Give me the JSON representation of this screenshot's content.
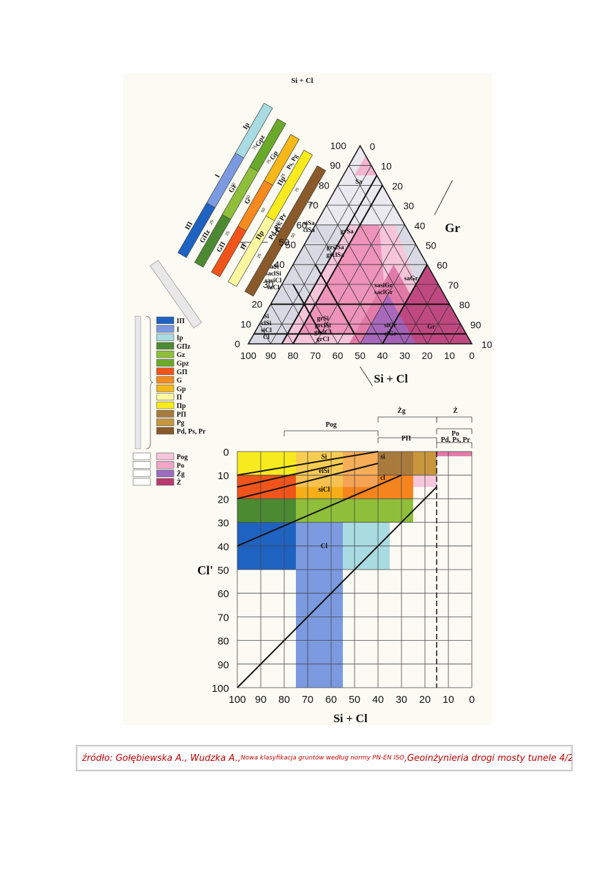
{
  "triangle": {
    "apex_label": "Si + Cl",
    "left_axis_label": "Sa",
    "right_axis_label": "Gr",
    "bottom_axis_label": "Si + Cl",
    "left_ticks": [
      "0",
      "10",
      "20",
      "30",
      "40",
      "50",
      "60",
      "70",
      "80",
      "90",
      "100"
    ],
    "right_ticks": [
      "0",
      "10",
      "20",
      "30",
      "40",
      "50",
      "60",
      "70",
      "80",
      "90",
      "100"
    ],
    "bottom_ticks": [
      "100",
      "90",
      "80",
      "70",
      "60",
      "50",
      "40",
      "30",
      "20",
      "10",
      "0"
    ],
    "regions": [
      {
        "text": "Sa"
      },
      {
        "text": "siSa"
      },
      {
        "text": "clSa"
      },
      {
        "text": "grSa"
      },
      {
        "text": "grsiSa"
      },
      {
        "text": "grclSa"
      },
      {
        "text": "saSi"
      },
      {
        "text": "saclSi"
      },
      {
        "text": "sasiCl"
      },
      {
        "text": "saCl"
      },
      {
        "text": "sasiGr"
      },
      {
        "text": "saclGr"
      },
      {
        "text": "saGr"
      },
      {
        "text": "grSi"
      },
      {
        "text": "grclSi"
      },
      {
        "text": "grsiCl"
      },
      {
        "text": "grCl"
      },
      {
        "text": "Si"
      },
      {
        "text": "clSi"
      },
      {
        "text": "siCl"
      },
      {
        "text": "Cl"
      },
      {
        "text": "siGr"
      },
      {
        "text": "clGr"
      },
      {
        "text": "Gr"
      }
    ]
  },
  "bands": [
    {
      "labels": [
        "IΠ",
        "I",
        "Ip"
      ]
    },
    {
      "labels": [
        "GΠz",
        "Gz",
        "Gpz"
      ]
    },
    {
      "labels": [
        "GΠ",
        "G",
        "Gp"
      ]
    },
    {
      "labels": [
        "Π",
        "Πp"
      ]
    },
    {
      "labels": [
        "Pd, Ps, Pr"
      ]
    }
  ],
  "band_ticks": [
    "25",
    "50",
    "75"
  ],
  "band_extra_labels": [
    "Ps, Pg",
    "Πp",
    "50"
  ],
  "legend": [
    {
      "label": "IΠ",
      "color": "#1f63c2"
    },
    {
      "label": "I",
      "color": "#7b9ae0"
    },
    {
      "label": "Ip",
      "color": "#a8dbe2"
    },
    {
      "label": "GΠz",
      "color": "#4c8a32"
    },
    {
      "label": "Gz",
      "color": "#8fbf3a"
    },
    {
      "label": "Gpz",
      "color": "#6aaa2a"
    },
    {
      "label": "GΠ",
      "color": "#f0541a"
    },
    {
      "label": "G",
      "color": "#f58a1f"
    },
    {
      "label": "Gp",
      "color": "#f6b818"
    },
    {
      "label": "Π",
      "color": "#fbf7a0"
    },
    {
      "label": "Πp",
      "color": "#f7ea1e"
    },
    {
      "label": "PΠ",
      "color": "#a87a3c"
    },
    {
      "label": "Pg",
      "color": "#c9963c"
    },
    {
      "label": "Pd, Ps, Pr",
      "color": "#8a5a2a"
    }
  ],
  "legend2": [
    {
      "label": "Pog",
      "color": "#f7c6dc"
    },
    {
      "label": "Po",
      "color": "#f4a6c8"
    },
    {
      "label": "Żg",
      "color": "#9c6cc0"
    },
    {
      "label": "Ż",
      "color": "#b83a6e"
    }
  ],
  "lower_chart": {
    "y_axis_label": "Cl'",
    "x_axis_label": "Si + Cl",
    "x_ticks": [
      "100",
      "90",
      "80",
      "70",
      "60",
      "50",
      "40",
      "30",
      "20",
      "10",
      "0"
    ],
    "y_ticks": [
      "0",
      "10",
      "20",
      "30",
      "40",
      "50",
      "60",
      "70",
      "80",
      "90",
      "100"
    ],
    "top_labels": [
      "Żg",
      "Ż",
      "Pog",
      "PΠ",
      "Po",
      "Pd, Ps, Pr"
    ],
    "area_labels": [
      "Si",
      "elSi",
      "siCl",
      "Cl",
      "si",
      "cl"
    ]
  },
  "caption": {
    "part1": "źródło: Gołębiewska A., Wudzka  A., ",
    "part2": "Nowa klasyfikacja gruntów według normy PN-EN ISO",
    "part3": ",Geoinżynieria drogi mosty tunele 4/2006 [11]"
  }
}
